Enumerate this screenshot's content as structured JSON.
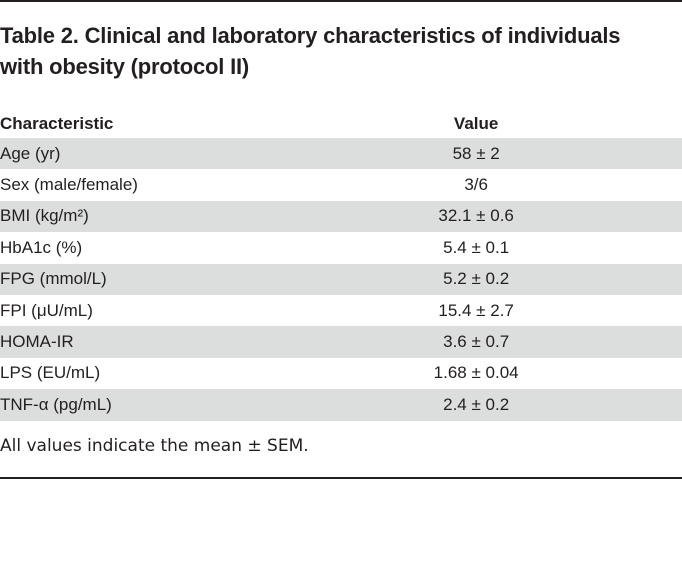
{
  "table": {
    "title_line1": "Table 2. Clinical and laboratory characteristics of individuals",
    "title_line2": "with obesity (protocol II)",
    "headers": {
      "characteristic": "Characteristic",
      "value": "Value"
    },
    "rows": [
      {
        "label": "Age (yr)",
        "value": "58 ± 2"
      },
      {
        "label": "Sex (male/female)",
        "value": "3/6"
      },
      {
        "label": "BMI (kg/m²)",
        "value": "32.1 ± 0.6"
      },
      {
        "label": "HbA1c (%)",
        "value": "5.4 ± 0.1"
      },
      {
        "label": "FPG (mmol/L)",
        "value": "5.2 ± 0.2"
      },
      {
        "label": "FPI (μU/mL)",
        "value": "15.4 ± 2.7"
      },
      {
        "label": "HOMA-IR",
        "value": "3.6 ± 0.7"
      },
      {
        "label": "LPS (EU/mL)",
        "value": "1.68 ± 0.04"
      },
      {
        "label": "TNF-α (pg/mL)",
        "value": "2.4 ± 0.2"
      }
    ],
    "footnote": "All values indicate the mean ± SEM.",
    "colors": {
      "shade": "#dcdddd",
      "text": "#231f20",
      "rule": "#231f20"
    }
  }
}
